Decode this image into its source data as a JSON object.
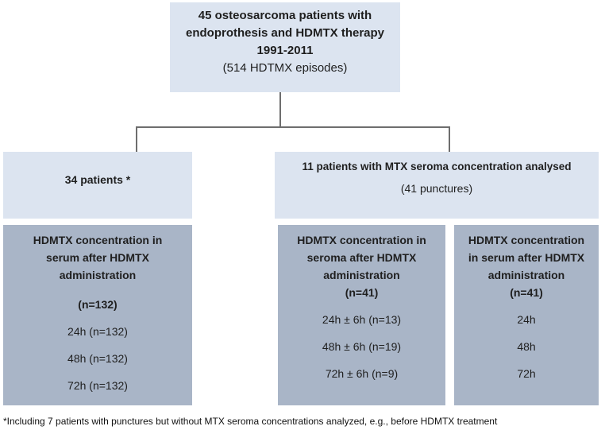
{
  "colors": {
    "box_light": "#dce4f0",
    "box_dark": "#a9b5c7",
    "connector_line": "#6e6e6e",
    "text": "#1f1f1f"
  },
  "root_box": {
    "lines": [
      "45 osteosarcoma patients with",
      "endoprothesis and HDMTX therapy",
      "1991-2011"
    ],
    "subline": "(514 HDTMX episodes)"
  },
  "left_branch": {
    "title": "34 patients *"
  },
  "right_branch": {
    "title": "11 patients with MTX seroma concentration analysed",
    "subtitle": "(41 punctures)"
  },
  "leaf_boxes": [
    {
      "heading_lines": [
        "HDMTX concentration in",
        "serum after HDMTX",
        "administration"
      ],
      "n_label": "(n=132)",
      "items": [
        "24h (n=132)",
        "48h (n=132)",
        "72h (n=132)"
      ]
    },
    {
      "heading_lines": [
        "HDMTX concentration in",
        "seroma after HDMTX",
        "administration"
      ],
      "n_label": "(n=41)",
      "items": [
        "24h ± 6h (n=13)",
        "48h ± 6h (n=19)",
        "72h ± 6h (n=9)"
      ]
    },
    {
      "heading_lines": [
        "HDMTX concentration",
        "in serum after HDMTX",
        "administration"
      ],
      "n_label": "(n=41)",
      "items": [
        "24h",
        "48h",
        "72h"
      ]
    }
  ],
  "footnote": "*Including 7 patients with punctures but without MTX seroma concentrations analyzed, e.g., before HDMTX treatment"
}
